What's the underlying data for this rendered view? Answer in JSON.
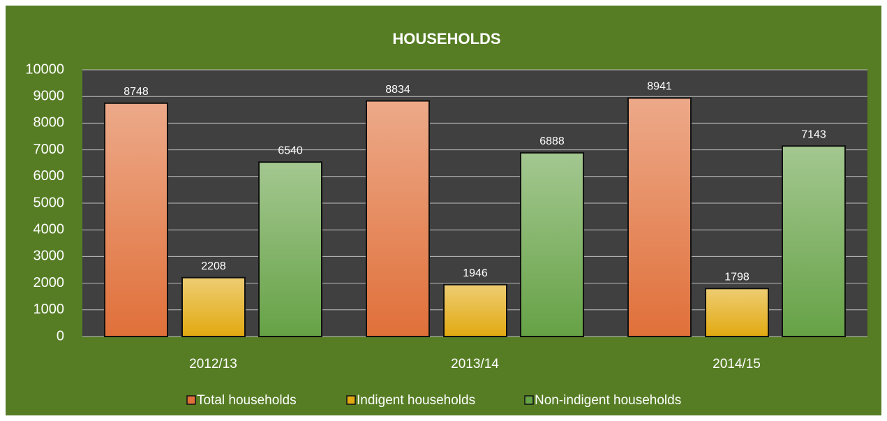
{
  "chart_data": {
    "type": "bar",
    "title": "HOUSEHOLDS",
    "categories": [
      "2012/13",
      "2013/14",
      "2014/15"
    ],
    "series": [
      {
        "name": "Total households",
        "color": "#e0703a",
        "values": [
          8748,
          8834,
          8941
        ]
      },
      {
        "name": "Indigent households",
        "color": "#e2aa12",
        "values": [
          2208,
          1946,
          1798
        ]
      },
      {
        "name": "Non-indigent households",
        "color": "#66a246",
        "values": [
          6540,
          6888,
          7143
        ]
      }
    ],
    "ylim": [
      0,
      10000
    ],
    "yticks": [
      0,
      1000,
      2000,
      3000,
      4000,
      5000,
      6000,
      7000,
      8000,
      9000,
      10000
    ],
    "grid": true,
    "legend": "bottom"
  }
}
